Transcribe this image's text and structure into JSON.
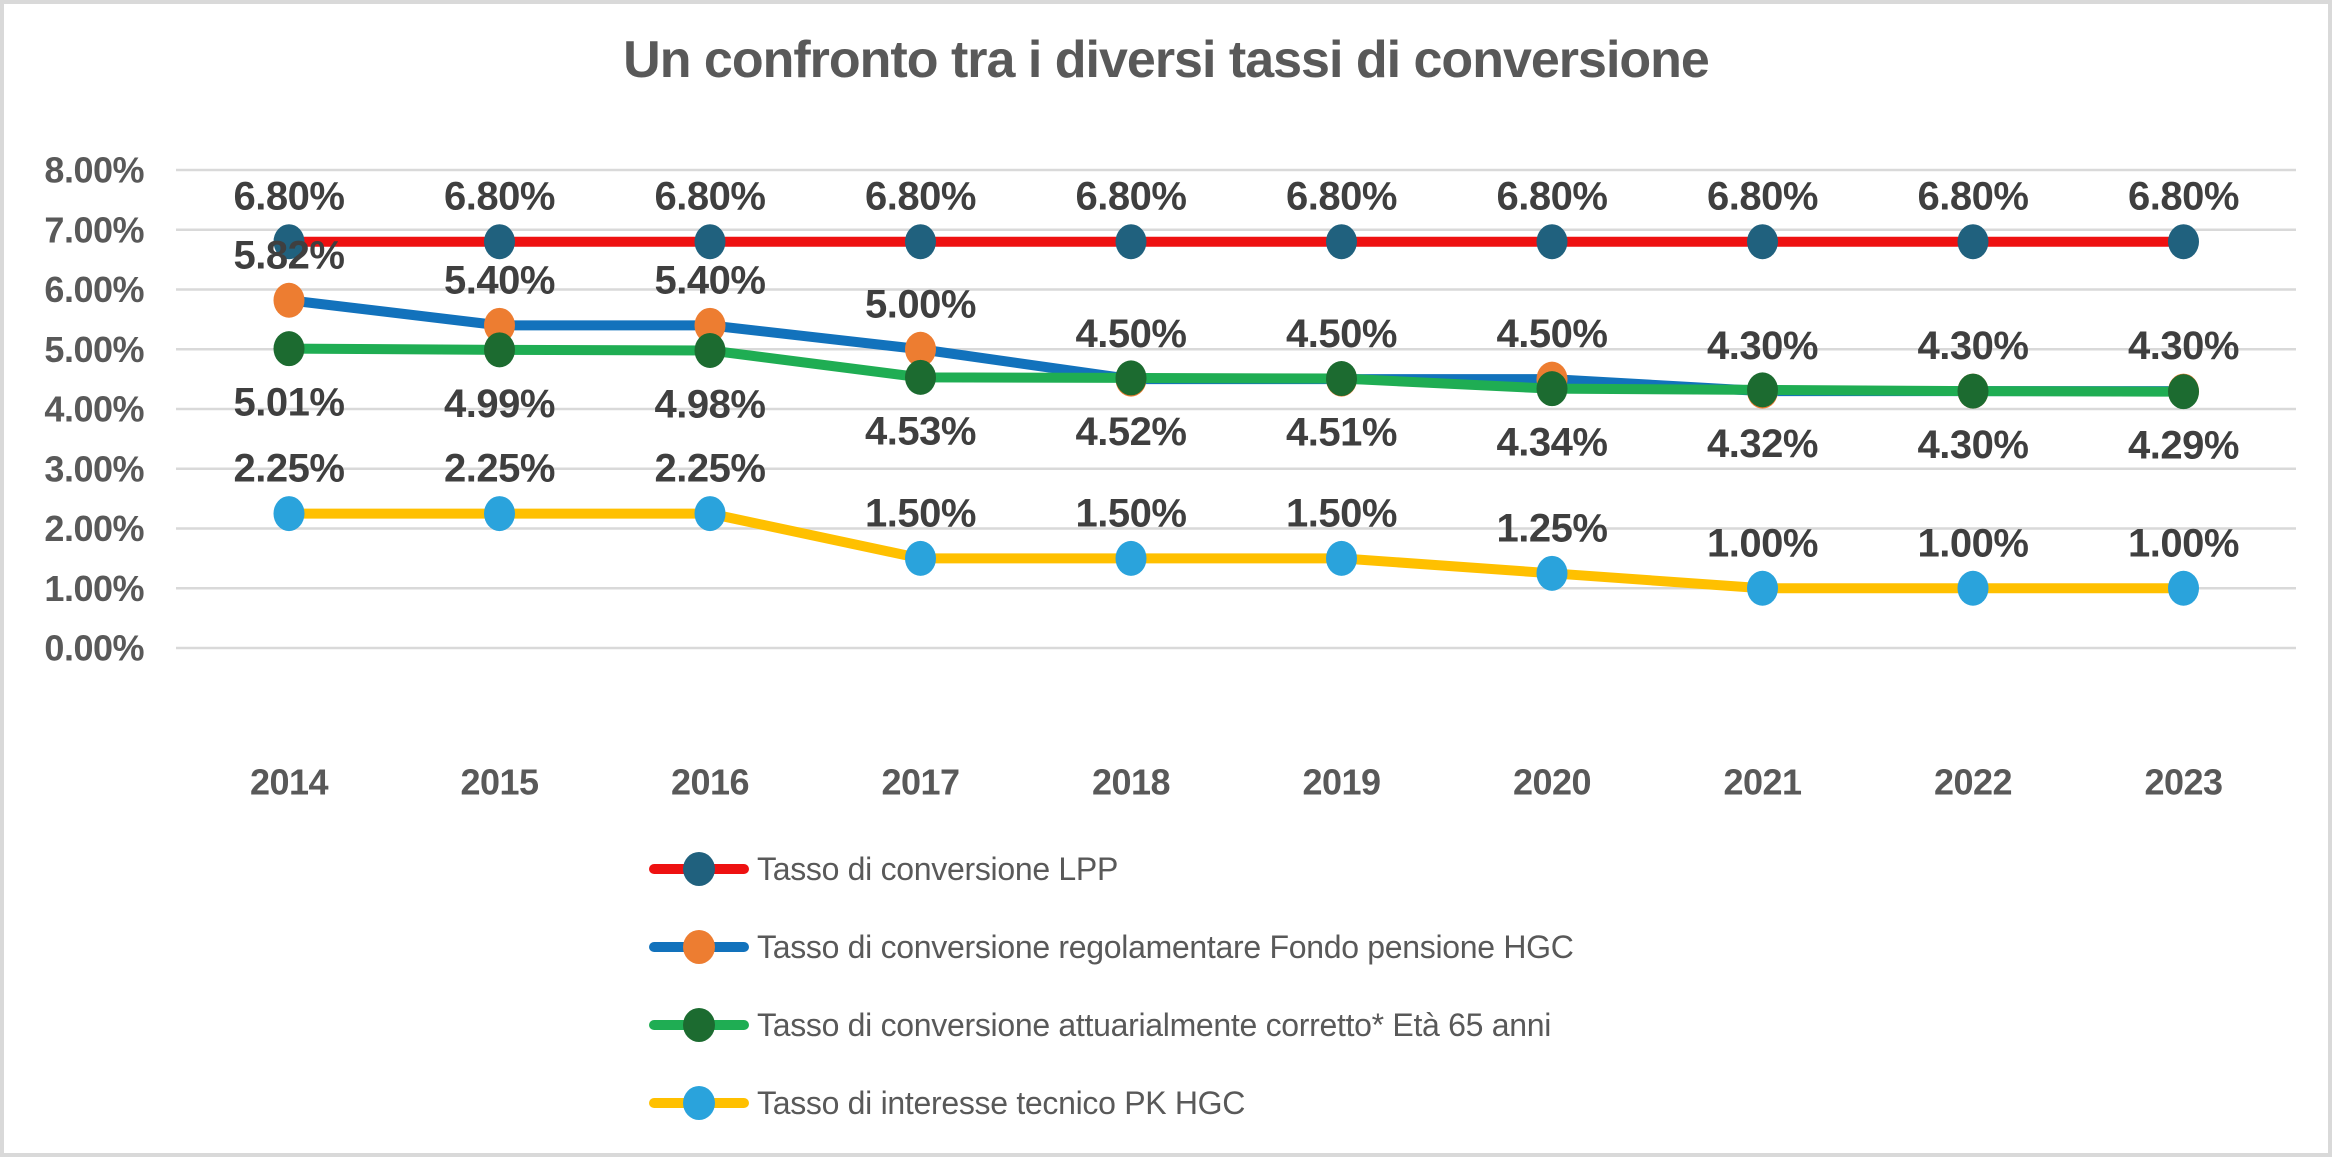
{
  "chart_data": {
    "type": "line",
    "title": "Un confronto tra i diversi tassi di conversione",
    "x_categories": [
      "2014",
      "2015",
      "2016",
      "2017",
      "2018",
      "2019",
      "2020",
      "2021",
      "2022",
      "2023"
    ],
    "y_axis": {
      "min": 0,
      "max": 8,
      "tick_values": [
        0,
        1,
        2,
        3,
        4,
        5,
        6,
        7,
        8
      ],
      "tick_labels": [
        "0.00%",
        "1.00%",
        "2.00%",
        "3.00%",
        "4.00%",
        "5.00%",
        "6.00%",
        "7.00%",
        "8.00%"
      ]
    },
    "grid": "horizontal",
    "gridline_color": "#D9D9D9",
    "legend_position": "bottom",
    "text_colors": {
      "title": "#595959",
      "axis": "#595959",
      "data_label": "#3F3F3F",
      "legend": "#595959"
    },
    "series": [
      {
        "name": "Tasso di conversione LPP",
        "line_color": "#EE1111",
        "marker_color": "#20617E",
        "label_position": "above",
        "values": [
          6.8,
          6.8,
          6.8,
          6.8,
          6.8,
          6.8,
          6.8,
          6.8,
          6.8,
          6.8
        ],
        "labels": [
          "6.80%",
          "6.80%",
          "6.80%",
          "6.80%",
          "6.80%",
          "6.80%",
          "6.80%",
          "6.80%",
          "6.80%",
          "6.80%"
        ]
      },
      {
        "name": "Tasso di conversione regolamentare Fondo pensione HGC",
        "line_color": "#1272BC",
        "marker_color": "#ED7D31",
        "label_position": "above",
        "values": [
          5.82,
          5.4,
          5.4,
          5.0,
          4.5,
          4.5,
          4.5,
          4.3,
          4.3,
          4.3
        ],
        "labels": [
          "5.82%",
          "5.40%",
          "5.40%",
          "5.00%",
          "4.50%",
          "4.50%",
          "4.50%",
          "4.30%",
          "4.30%",
          "4.30%"
        ]
      },
      {
        "name": "Tasso di conversione attuarialmente corretto* Età 65 anni",
        "line_color": "#1FAD53",
        "marker_color": "#1C6B30",
        "label_position": "below",
        "values": [
          5.01,
          4.99,
          4.98,
          4.53,
          4.52,
          4.51,
          4.34,
          4.32,
          4.3,
          4.29
        ],
        "labels": [
          "5.01%",
          "4.99%",
          "4.98%",
          "4.53%",
          "4.52%",
          "4.51%",
          "4.34%",
          "4.32%",
          "4.30%",
          "4.29%"
        ]
      },
      {
        "name": "Tasso di interesse tecnico PK HGC",
        "line_color": "#FFC000",
        "marker_color": "#2AA3DC",
        "label_position": "above",
        "values": [
          2.25,
          2.25,
          2.25,
          1.5,
          1.5,
          1.5,
          1.25,
          1.0,
          1.0,
          1.0
        ],
        "labels": [
          "2.25%",
          "2.25%",
          "2.25%",
          "1.50%",
          "1.50%",
          "1.50%",
          "1.25%",
          "1.00%",
          "1.00%",
          "1.00%"
        ]
      }
    ]
  }
}
